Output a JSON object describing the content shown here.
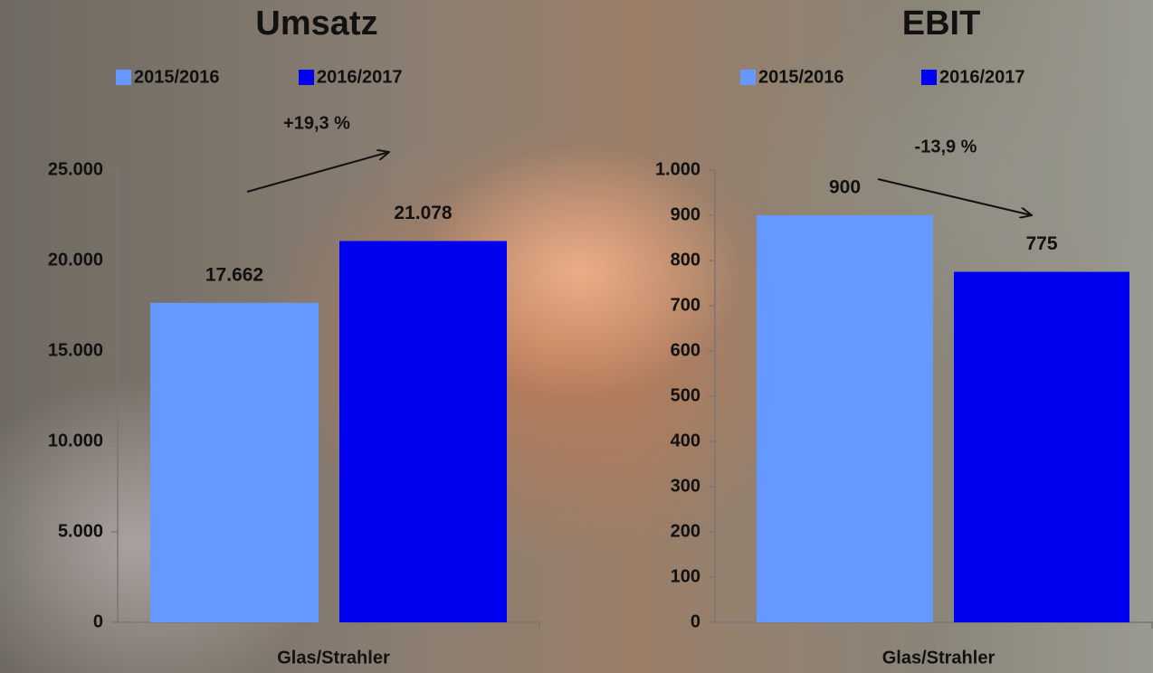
{
  "chart_data": [
    {
      "type": "bar",
      "title": "Umsatz",
      "categories": [
        "Glas/Strahler"
      ],
      "series": [
        {
          "name": "2015/2016",
          "color": "#6699ff",
          "values": [
            17662
          ],
          "value_labels": [
            "17.662"
          ]
        },
        {
          "name": "2016/2017",
          "color": "#0000f0",
          "values": [
            21078
          ],
          "value_labels": [
            "21.078"
          ]
        }
      ],
      "annotations": [
        "+19,3 %"
      ],
      "ylim": [
        0,
        25000
      ],
      "yticks": [
        0,
        {
          "value": 5000,
          "label": "5.000"
        },
        {
          "value": 10000,
          "label": "10.000"
        },
        {
          "value": 15000,
          "label": "15.000"
        },
        {
          "value": 20000,
          "label": "20.000"
        },
        {
          "value": 25000,
          "label": "25.000"
        }
      ]
    },
    {
      "type": "bar",
      "title": "EBIT",
      "categories": [
        "Glas/Strahler"
      ],
      "series": [
        {
          "name": "2015/2016",
          "color": "#6699ff",
          "values": [
            900
          ],
          "value_labels": [
            "900"
          ]
        },
        {
          "name": "2016/2017",
          "color": "#0000f0",
          "values": [
            775
          ],
          "value_labels": [
            "775"
          ]
        }
      ],
      "annotations": [
        "-13,9 %"
      ],
      "ylim": [
        0,
        1000
      ],
      "yticks": [
        0,
        100,
        200,
        300,
        400,
        500,
        600,
        700,
        800,
        900,
        {
          "value": 1000,
          "label": "1.000"
        }
      ]
    }
  ]
}
